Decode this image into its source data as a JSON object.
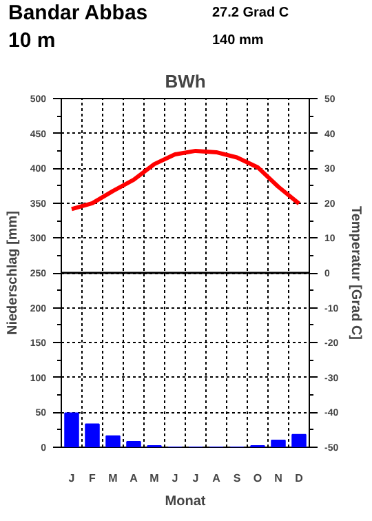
{
  "chart_data": {
    "type": "bar",
    "title": "BWh",
    "xlabel": "Monat",
    "ylabel": "Niederschlag [mm]",
    "y2label": "Temperatur [Grad C]",
    "annotations": [
      "Bandar Abbas",
      "10 m",
      "27.2 Grad C",
      "140 mm"
    ],
    "categories": [
      "J",
      "F",
      "M",
      "A",
      "M",
      "J",
      "J",
      "A",
      "S",
      "O",
      "N",
      "D"
    ],
    "series": [
      {
        "name": null,
        "color": "#0000ff",
        "values": [
          49,
          33,
          16,
          8,
          2,
          0,
          0,
          0,
          0,
          2,
          10,
          18
        ]
      },
      {
        "name": null,
        "type": "line",
        "axis": "y2",
        "color": "#ff0000",
        "values": [
          18.3,
          20.0,
          23.5,
          26.7,
          31.2,
          34.0,
          35.0,
          34.6,
          33.1,
          30.3,
          24.7,
          19.9
        ]
      }
    ],
    "ylim": [
      0,
      500
    ],
    "yticks": [
      0,
      {
        "value": 25,
        "label": null
      },
      50,
      {
        "value": 75,
        "label": null
      },
      100,
      {
        "value": 125,
        "label": null
      },
      150,
      {
        "value": 175,
        "label": null
      },
      200,
      {
        "value": 225,
        "label": null
      },
      250,
      {
        "value": 275,
        "label": null
      },
      300,
      {
        "value": 325,
        "label": null
      },
      350,
      {
        "value": 375,
        "label": null
      },
      400,
      {
        "value": 425,
        "label": null
      },
      450,
      {
        "value": 475,
        "label": null
      },
      500
    ],
    "y2lim": [
      -50,
      50
    ],
    "y2ticks": [
      -50,
      {
        "value": -45,
        "label": null
      },
      -40,
      {
        "value": -35,
        "label": null
      },
      -30,
      {
        "value": -25,
        "label": null
      },
      -20,
      {
        "value": -15,
        "label": null
      },
      -10,
      {
        "value": -5,
        "label": null
      },
      0,
      {
        "value": 5,
        "label": null
      },
      10,
      {
        "value": 15,
        "label": null
      },
      20,
      {
        "value": 25,
        "label": null
      },
      30,
      {
        "value": 35,
        "label": null
      },
      40,
      {
        "value": 45,
        "label": null
      },
      50
    ],
    "ref_lines": [
      {
        "axis": "y2",
        "value": 0,
        "label": null,
        "color": "#000000",
        "line_style": "solid"
      }
    ],
    "grid": true
  }
}
